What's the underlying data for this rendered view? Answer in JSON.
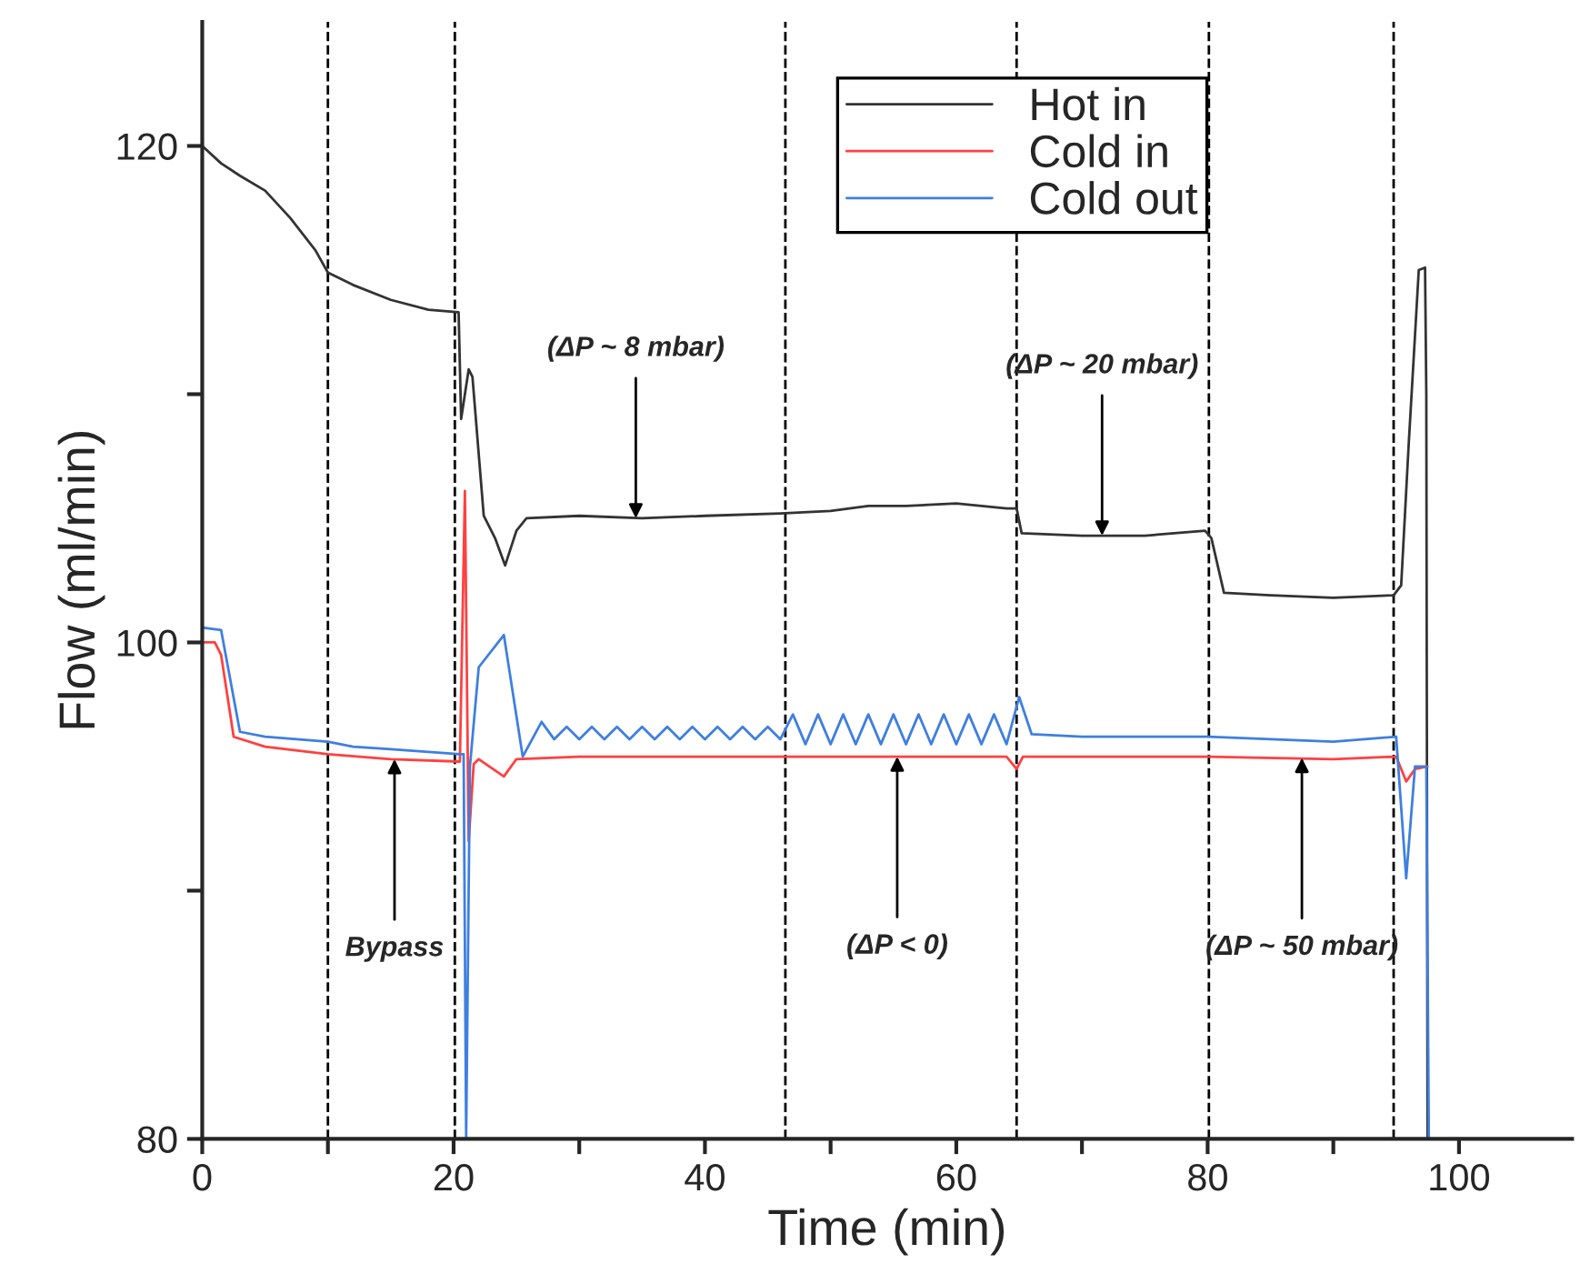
{
  "chart_data": {
    "type": "line",
    "xlabel": "Time (min)",
    "ylabel": "Flow (ml/min)",
    "xlim": [
      0,
      109
    ],
    "ylim": [
      80,
      125
    ],
    "xticks": [
      0,
      {
        "value": 10,
        "label": null
      },
      20,
      {
        "value": 30,
        "label": null
      },
      40,
      {
        "value": 50,
        "label": null
      },
      60,
      {
        "value": 70,
        "label": null
      },
      80,
      {
        "value": 90,
        "label": null
      },
      100
    ],
    "yticks": [
      80,
      {
        "value": 90,
        "label": null
      },
      100,
      {
        "value": 110,
        "label": null
      },
      120
    ],
    "grid": false,
    "legend": "top right",
    "line_style": "solid",
    "marker": "none",
    "series": [
      {
        "name": "Hot in",
        "color": "#333333",
        "x": [
          0,
          1.5,
          3,
          5,
          7,
          9,
          10,
          12,
          15,
          18,
          20.4,
          20.6,
          21.2,
          21.5,
          22.4,
          23.3,
          24.1,
          25,
          25.8,
          30,
          35,
          40,
          46,
          50,
          53,
          56,
          60,
          64,
          64.8,
          65.2,
          70,
          75,
          79.8,
          80.3,
          81.3,
          85,
          90,
          94.8,
          95.4,
          96,
          96.8,
          97.3,
          97.4,
          97.5
        ],
        "values": [
          120,
          119.3,
          118.8,
          118.2,
          117.1,
          115.8,
          114.9,
          114.4,
          113.8,
          113.4,
          113.3,
          109,
          111,
          110.7,
          105.1,
          104.2,
          103.1,
          104.5,
          105,
          105.1,
          105,
          105.1,
          105.2,
          105.3,
          105.5,
          105.5,
          105.6,
          105.4,
          105.4,
          104.4,
          104.3,
          104.3,
          104.5,
          104.2,
          102,
          101.9,
          101.8,
          101.9,
          102.3,
          108,
          115,
          115.1,
          110,
          80
        ]
      },
      {
        "name": "Cold in",
        "color": "#ff4040",
        "x": [
          0,
          1,
          1.5,
          2.5,
          5,
          10,
          15,
          20.5,
          20.9,
          21.2,
          21.6,
          22,
          24,
          25,
          30,
          40,
          50,
          60,
          64,
          64.8,
          65.3,
          70,
          80,
          90,
          95,
          95.8,
          96.5,
          97.5
        ],
        "values": [
          100,
          100,
          99.5,
          96.2,
          95.8,
          95.5,
          95.3,
          95.2,
          106.1,
          92,
          95.1,
          95.3,
          94.6,
          95.3,
          95.4,
          95.4,
          95.4,
          95.4,
          95.4,
          94.9,
          95.4,
          95.4,
          95.4,
          95.3,
          95.4,
          94.4,
          94.9,
          95
        ]
      },
      {
        "name": "Cold out",
        "color": "#3f7fe0",
        "x": [
          0,
          1.5,
          3,
          5,
          10,
          12,
          15,
          20.5,
          20.8,
          21.0,
          21.3,
          22,
          24,
          25.5,
          27,
          28,
          29,
          30,
          31,
          32,
          33,
          34,
          35,
          36,
          37,
          38,
          39,
          40,
          41,
          42,
          43,
          44,
          45,
          46,
          47,
          48,
          49,
          50,
          51,
          52,
          53,
          54,
          55,
          56,
          57,
          58,
          59,
          60,
          61,
          62,
          63,
          64,
          65,
          66,
          70,
          80,
          90,
          95,
          95.8,
          96.5,
          97.4,
          97.6
        ],
        "values": [
          100.6,
          100.5,
          96.4,
          96.2,
          96,
          95.8,
          95.7,
          95.5,
          95.5,
          80,
          95,
          99,
          100.3,
          95.4,
          96.8,
          96.1,
          96.6,
          96.1,
          96.6,
          96.1,
          96.6,
          96.1,
          96.6,
          96.1,
          96.6,
          96.1,
          96.6,
          96.1,
          96.6,
          96.1,
          96.6,
          96.1,
          96.6,
          96.1,
          97.1,
          95.9,
          97.1,
          95.9,
          97.1,
          95.9,
          97.1,
          95.9,
          97.1,
          95.9,
          97.1,
          95.9,
          97.1,
          95.9,
          97.1,
          95.9,
          97.1,
          95.9,
          97.8,
          96.3,
          96.2,
          96.2,
          96,
          96.2,
          90.5,
          95,
          95,
          80
        ]
      }
    ],
    "ref_lines": [
      {
        "axis": "x",
        "value": 10,
        "color": "#000000",
        "line_style": "dashed"
      },
      {
        "axis": "x",
        "value": 20.1,
        "color": "#000000",
        "line_style": "dashed"
      },
      {
        "axis": "x",
        "value": 46.4,
        "color": "#000000",
        "line_style": "dashed"
      },
      {
        "axis": "x",
        "value": 64.8,
        "color": "#000000",
        "line_style": "dashed"
      },
      {
        "axis": "x",
        "value": 80.1,
        "color": "#000000",
        "line_style": "dashed"
      },
      {
        "axis": "x",
        "value": 94.8,
        "color": "#000000",
        "line_style": "dashed"
      }
    ],
    "annotations": [
      {
        "text": "(ΔP ~ 8 mbar)",
        "x": 34.5,
        "y": 105.0
      },
      {
        "text": "(ΔP ~ 20 mbar)",
        "x": 71.6,
        "y": 104.3
      },
      {
        "text": "Bypass",
        "x": 15.3,
        "y": 95.3
      },
      {
        "text": "(ΔP < 0)",
        "x": 55.3,
        "y": 95.4
      },
      {
        "text": "(ΔP ~ 50 mbar)",
        "x": 87.5,
        "y": 95.35
      }
    ]
  }
}
